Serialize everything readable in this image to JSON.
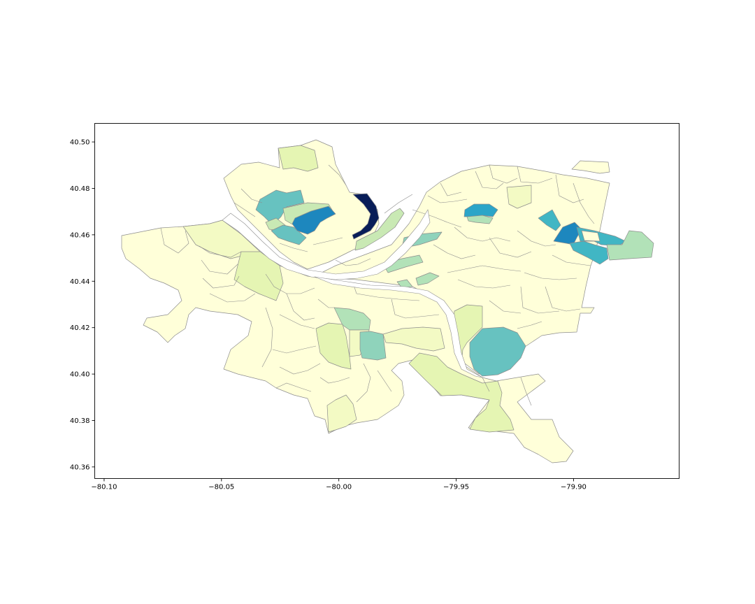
{
  "chart_data": {
    "type": "choropleth",
    "x_ticks": [
      "−80.10",
      "−80.05",
      "−80.00",
      "−79.95",
      "−79.90"
    ],
    "y_ticks": [
      "40.36",
      "40.38",
      "40.40",
      "40.42",
      "40.44",
      "40.46",
      "40.48",
      "40.50"
    ],
    "xlim": [
      -80.104,
      -79.855
    ],
    "ylim": [
      40.355,
      40.508
    ],
    "colormap": "YlGnBu",
    "palette": {
      "v0": "#ffffd9",
      "v1": "#f3fac4",
      "v2": "#e5f5b3",
      "v3": "#c9e9b4",
      "v4": "#b2e2b8",
      "v5": "#8fd3bb",
      "v6": "#67c2c0",
      "v7": "#41b6c4",
      "v8": "#2ba5c8",
      "v9": "#1d87be",
      "v10": "#081d58"
    },
    "water_color": "#ffffff",
    "boundary_color": "#8c8c8c"
  }
}
